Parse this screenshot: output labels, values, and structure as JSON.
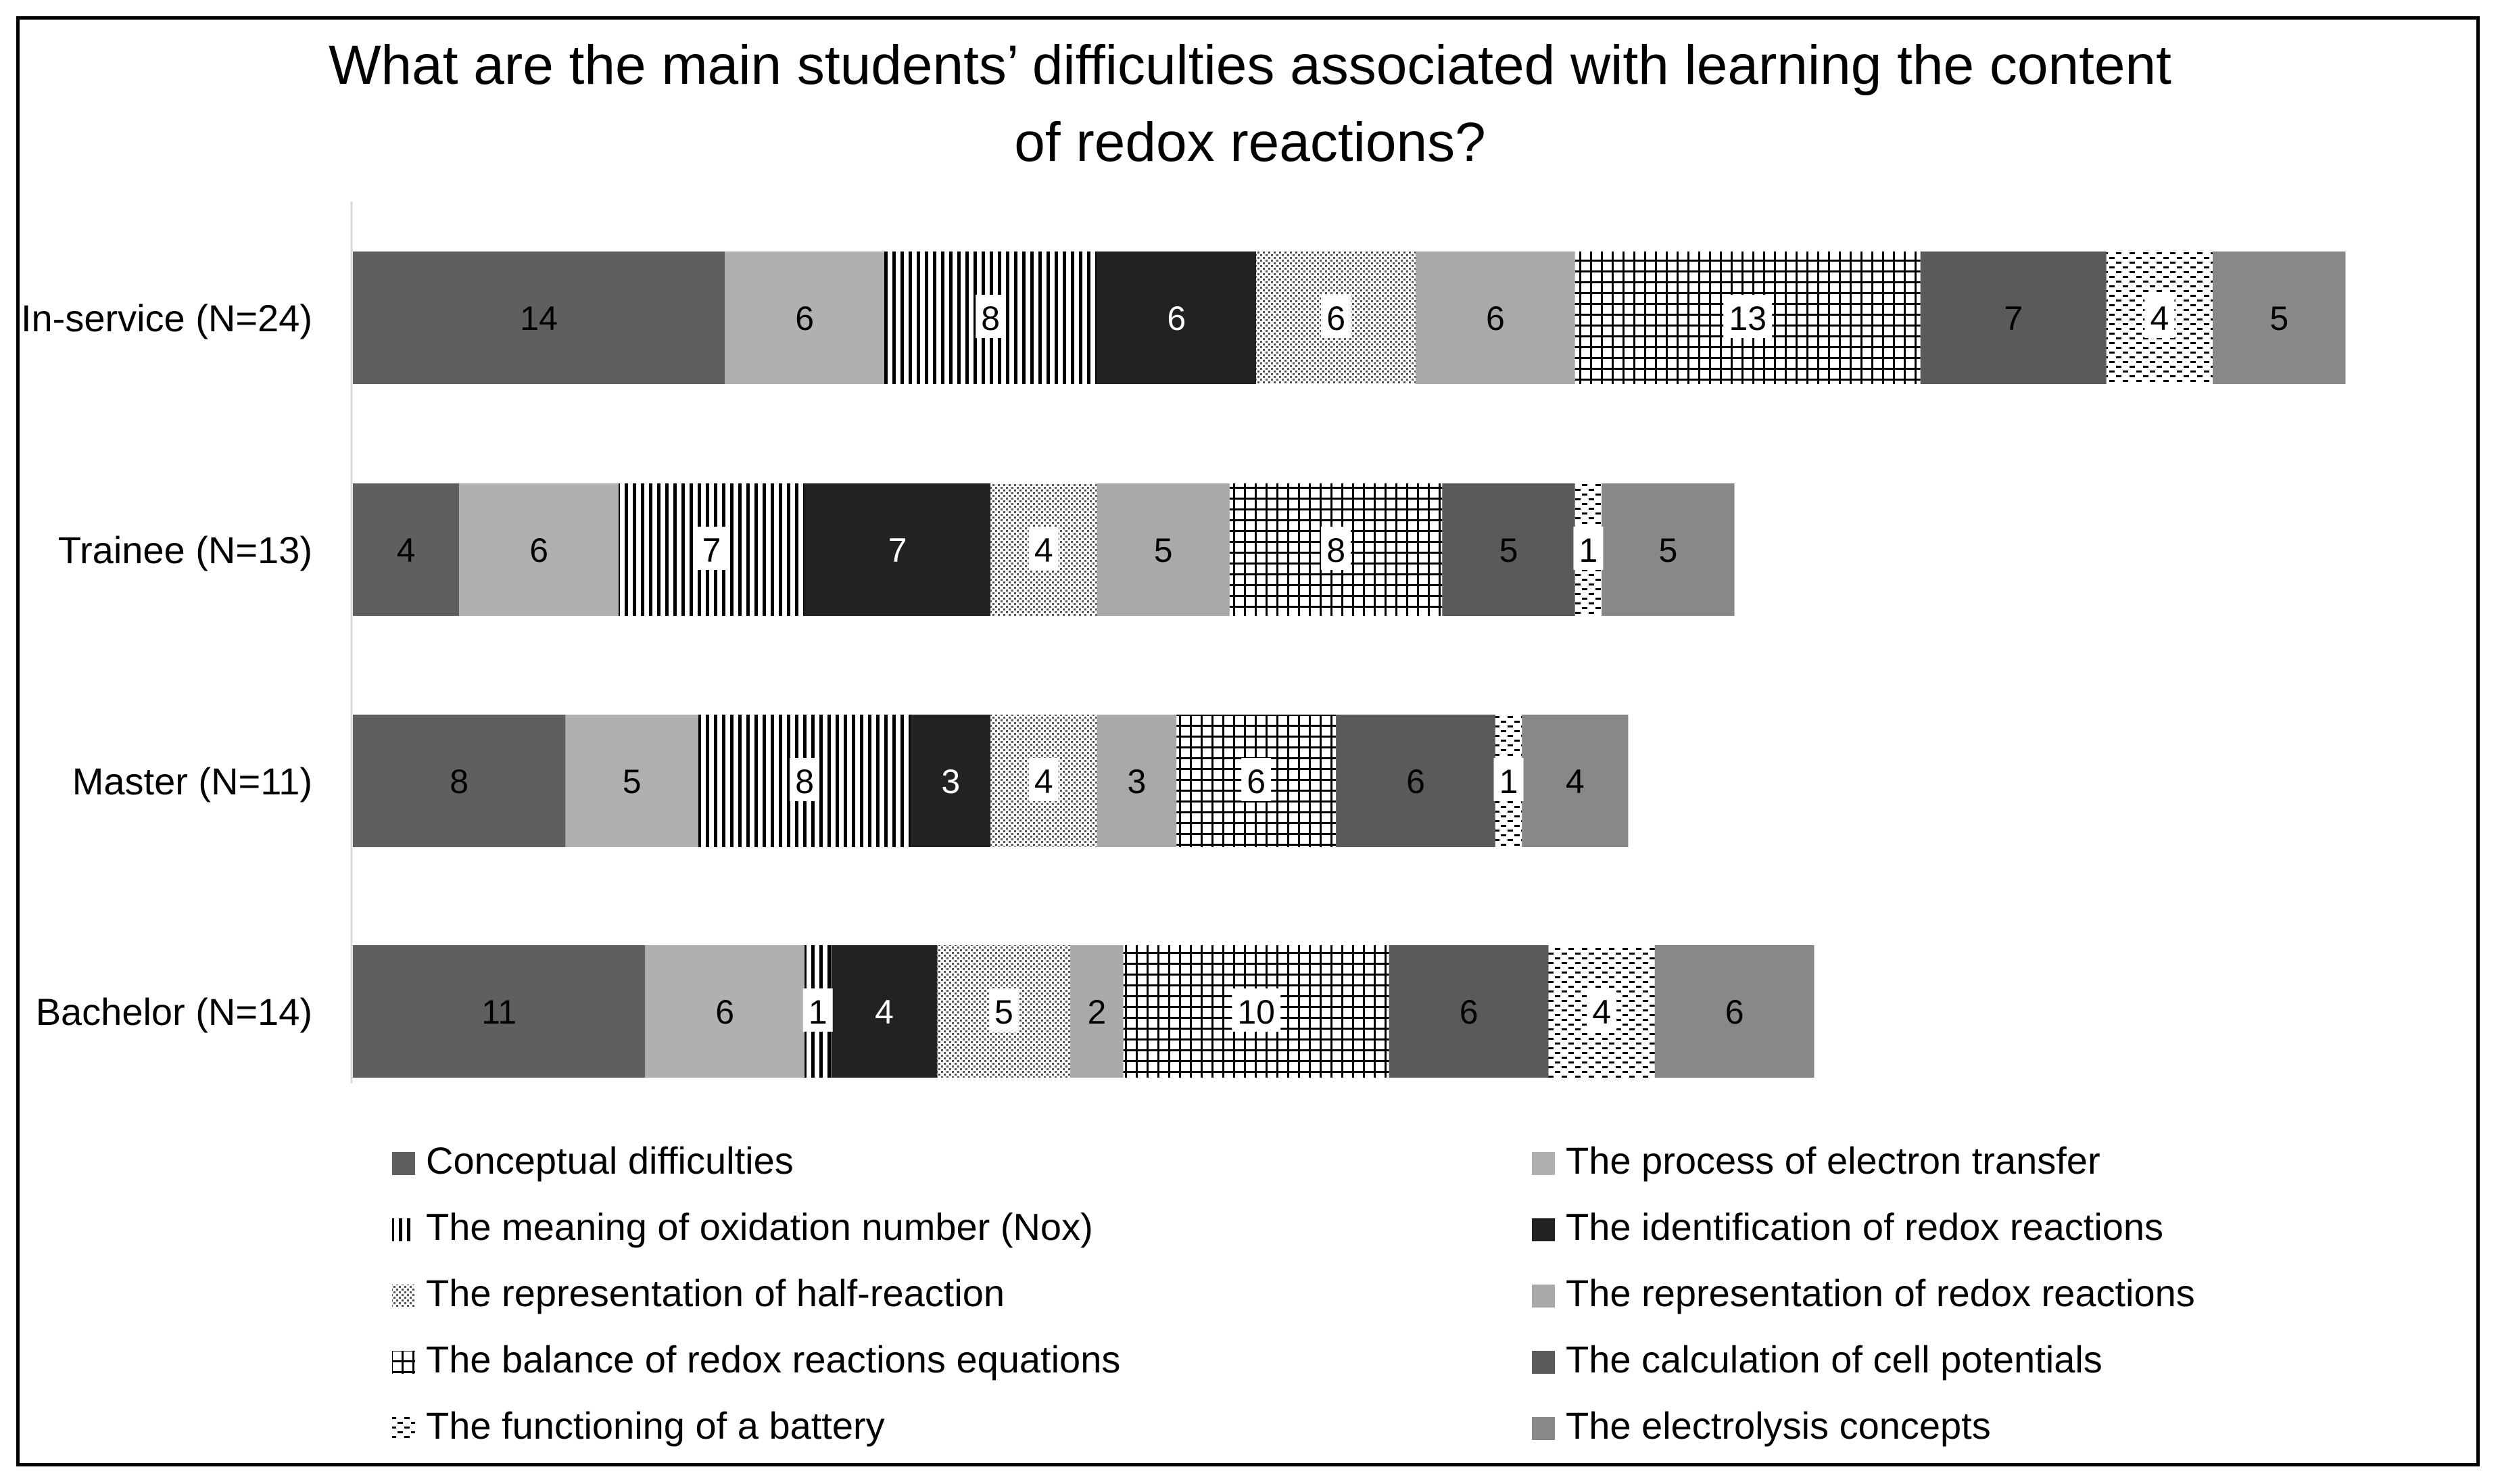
{
  "chart_data": {
    "type": "bar",
    "orientation": "horizontal",
    "stacked": true,
    "title_line1": "What are the main students’ difficulties associated with learning the content",
    "title_line2": "of redox reactions?",
    "categories": [
      "In-service (N=24)",
      "Trainee (N=13)",
      "Master (N=11)",
      "Bachelor (N=14)"
    ],
    "series": [
      {
        "name": "Conceptual difficulties",
        "values": [
          14,
          4,
          8,
          11
        ],
        "color": "#5f5f5f",
        "pattern": "solid"
      },
      {
        "name": "The process of electron transfer",
        "values": [
          6,
          6,
          5,
          6
        ],
        "color": "#b0b0b0",
        "pattern": "solid"
      },
      {
        "name": "The meaning of oxidation number (Nox)",
        "values": [
          8,
          7,
          8,
          1
        ],
        "color": "#000000",
        "pattern": "vertical-lines"
      },
      {
        "name": "The identification of redox reactions",
        "values": [
          6,
          7,
          3,
          4
        ],
        "color": "#222222",
        "pattern": "solid"
      },
      {
        "name": "The representation of half-reaction",
        "values": [
          6,
          4,
          4,
          5
        ],
        "color": "#555555",
        "pattern": "dots"
      },
      {
        "name": "The representation of redox reactions",
        "values": [
          6,
          5,
          3,
          2
        ],
        "color": "#a9a9a9",
        "pattern": "solid"
      },
      {
        "name": "The balance of redox reactions equations",
        "values": [
          13,
          8,
          6,
          10
        ],
        "color": "#000000",
        "pattern": "grid"
      },
      {
        "name": "The calculation of cell potentials",
        "values": [
          7,
          5,
          6,
          6
        ],
        "color": "#5a5a5a",
        "pattern": "solid"
      },
      {
        "name": "The functioning of a battery",
        "values": [
          4,
          1,
          1,
          4
        ],
        "color": "#000000",
        "pattern": "dashes"
      },
      {
        "name": "The electrolysis concepts",
        "values": [
          5,
          5,
          4,
          6
        ],
        "color": "#888888",
        "pattern": "solid"
      }
    ],
    "xlim": [
      0,
      75
    ],
    "grid": false,
    "legend_position": "bottom"
  }
}
